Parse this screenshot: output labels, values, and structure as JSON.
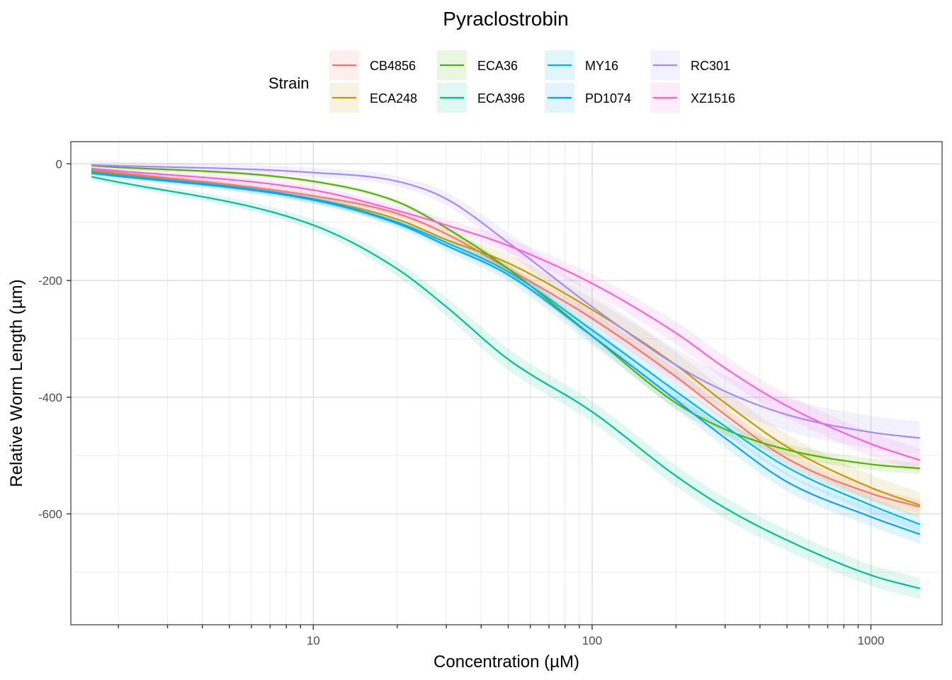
{
  "chart_data": {
    "type": "line",
    "title": "Pyraclostrobin",
    "xlabel": "Concentration (µM)",
    "ylabel": "Relative Worm Length (µm)",
    "x_scale": "log10",
    "xlim": [
      1.35,
      1800
    ],
    "ylim": [
      -790,
      38
    ],
    "x_ticks": [
      10,
      100,
      1000
    ],
    "x_tick_labels": [
      "10",
      "100",
      "1000"
    ],
    "y_ticks": [
      0,
      -200,
      -400,
      -600
    ],
    "y_tick_labels": [
      "0",
      "-200",
      "-400",
      "-600"
    ],
    "grid": true,
    "legend": {
      "title": "Strain",
      "position": "top"
    },
    "series": [
      {
        "name": "CB4856",
        "color": "#F8766D",
        "x": [
          1.6,
          10,
          20,
          30,
          50,
          100,
          200,
          300,
          500,
          1000,
          1500
        ],
        "y": [
          -10,
          -55,
          -85,
          -120,
          -180,
          -265,
          -365,
          -430,
          -505,
          -565,
          -588
        ],
        "ci_halfwidth": 12
      },
      {
        "name": "ECA248",
        "color": "#C49A00",
        "x": [
          1.6,
          10,
          20,
          30,
          50,
          100,
          200,
          300,
          500,
          1000,
          1500
        ],
        "y": [
          -12,
          -60,
          -95,
          -130,
          -170,
          -250,
          -345,
          -410,
          -485,
          -555,
          -585
        ],
        "ci_halfwidth": 22
      },
      {
        "name": "ECA36",
        "color": "#53B400",
        "x": [
          1.6,
          10,
          20,
          30,
          50,
          100,
          200,
          300,
          500,
          1000,
          1500
        ],
        "y": [
          -3,
          -30,
          -65,
          -110,
          -180,
          -295,
          -410,
          -455,
          -490,
          -515,
          -522
        ],
        "ci_halfwidth": 10
      },
      {
        "name": "ECA396",
        "color": "#00C094",
        "x": [
          1.6,
          10,
          20,
          30,
          50,
          100,
          200,
          300,
          500,
          1000,
          1500
        ],
        "y": [
          -22,
          -105,
          -180,
          -245,
          -335,
          -425,
          -535,
          -590,
          -645,
          -705,
          -728
        ],
        "ci_halfwidth": 18
      },
      {
        "name": "MY16",
        "color": "#00B6EB",
        "x": [
          1.6,
          10,
          20,
          30,
          50,
          100,
          200,
          300,
          500,
          1000,
          1500
        ],
        "y": [
          -14,
          -60,
          -100,
          -135,
          -185,
          -285,
          -390,
          -450,
          -520,
          -585,
          -618
        ],
        "ci_halfwidth": 14
      },
      {
        "name": "PD1074",
        "color": "#06A4FF",
        "x": [
          1.6,
          10,
          20,
          30,
          50,
          100,
          200,
          300,
          500,
          1000,
          1500
        ],
        "y": [
          -16,
          -62,
          -102,
          -140,
          -190,
          -295,
          -405,
          -470,
          -545,
          -605,
          -635
        ],
        "ci_halfwidth": 16
      },
      {
        "name": "RC301",
        "color": "#A58AFF",
        "x": [
          1.6,
          10,
          20,
          30,
          50,
          100,
          200,
          300,
          500,
          1000,
          1500
        ],
        "y": [
          -2,
          -15,
          -30,
          -60,
          -135,
          -245,
          -345,
          -390,
          -430,
          -460,
          -470
        ],
        "ci_halfwidth": 28
      },
      {
        "name": "XZ1516",
        "color": "#FB61D7",
        "x": [
          1.6,
          10,
          20,
          30,
          50,
          100,
          200,
          300,
          500,
          1000,
          1500
        ],
        "y": [
          -8,
          -45,
          -80,
          -105,
          -140,
          -205,
          -290,
          -350,
          -415,
          -480,
          -508
        ],
        "ci_halfwidth": 20
      }
    ]
  }
}
